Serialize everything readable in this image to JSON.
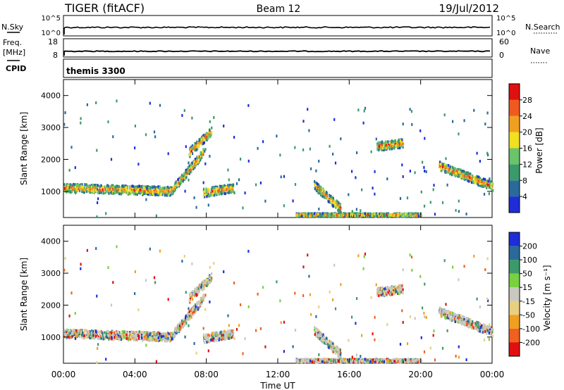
{
  "header": {
    "title": "TIGER (fitACF)",
    "beam": "Beam 12",
    "date": "19/Jul/2012",
    "cpid_value": "themis 3300"
  },
  "info_panels": {
    "nsky_label": "N.Sky",
    "nsky_ticks": [
      "10^5",
      "10^0"
    ],
    "nsearch_label": "N.Search",
    "nsearch_ticks": [
      "10^5",
      "10^0"
    ],
    "freq_label_1": "Freq.",
    "freq_label_2": "[MHz]",
    "freq_ticks": [
      "18",
      "8"
    ],
    "nave_label": "Nave",
    "nave_ticks": [
      "60",
      "0"
    ],
    "cpid_label": "CPID"
  },
  "axes": {
    "ylabel": "Slant Range [km]",
    "xlabel": "Time UT",
    "y_ticks": [
      1000,
      2000,
      3000,
      4000
    ],
    "x_ticks": [
      "00:00",
      "04:00",
      "08:00",
      "12:00",
      "16:00",
      "20:00",
      "00:00"
    ]
  },
  "power_scale": {
    "label": "Power [dB]",
    "ticks": [
      "4",
      "8",
      "12",
      "16",
      "20",
      "24",
      "28"
    ],
    "colors": [
      "#1e2dd8",
      "#2a6a9a",
      "#3a9a6a",
      "#6ac46a",
      "#f0e020",
      "#f0a020",
      "#f05a20",
      "#e01010"
    ]
  },
  "velocity_scale": {
    "label": "Velocity [m s⁻¹]",
    "ticks": [
      "200",
      "100",
      "50",
      "15",
      "-15",
      "-50",
      "-100",
      "-200"
    ],
    "colors": [
      "#1e2dd8",
      "#2a6a9a",
      "#3a9a6a",
      "#7ad040",
      "#c8c8c0",
      "#e8d080",
      "#f0a020",
      "#f06020",
      "#e01010"
    ]
  },
  "chart_data": {
    "type": "heatmap",
    "x_range_hours": [
      0,
      24
    ],
    "y_range_km": [
      180,
      4500
    ],
    "grid": false,
    "panels": [
      "power",
      "velocity"
    ],
    "echo_regions": [
      {
        "t_start": 0.0,
        "t_end": 6.0,
        "range_start": 1100,
        "range_end": 1000
      },
      {
        "t_start": 6.0,
        "t_end": 7.8,
        "range_start": 1000,
        "range_end": 2200
      },
      {
        "t_start": 7.0,
        "t_end": 8.3,
        "range_start": 2200,
        "range_end": 2900
      },
      {
        "t_start": 7.8,
        "t_end": 9.5,
        "range_start": 950,
        "range_end": 1100
      },
      {
        "t_start": 14.0,
        "t_end": 15.5,
        "range_start": 1200,
        "range_end": 450
      },
      {
        "t_start": 17.5,
        "t_end": 19.0,
        "range_start": 2400,
        "range_end": 2500
      },
      {
        "t_start": 21.0,
        "t_end": 24.0,
        "range_start": 1800,
        "range_end": 1150
      },
      {
        "t_start": 13.0,
        "t_end": 20.0,
        "range_start": 260,
        "range_end": 260
      }
    ]
  }
}
